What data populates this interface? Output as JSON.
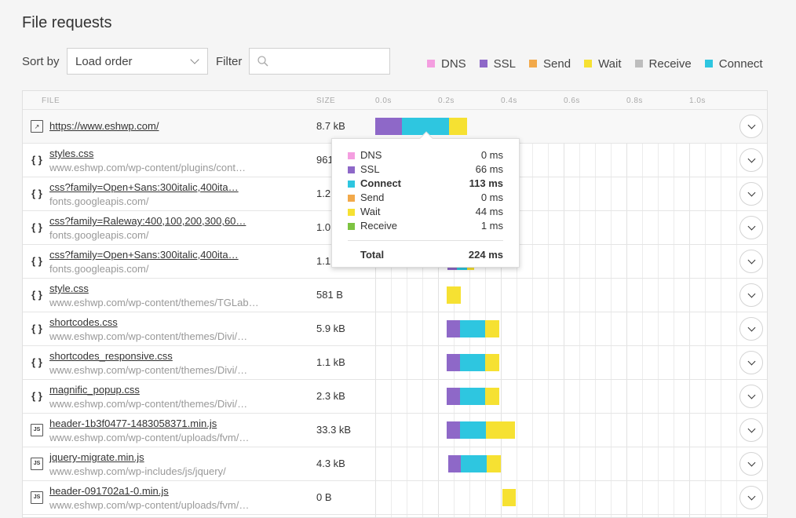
{
  "title": "File requests",
  "sort": {
    "label": "Sort by",
    "value": "Load order"
  },
  "filter": {
    "label": "Filter",
    "placeholder": ""
  },
  "legend": [
    {
      "name": "DNS",
      "color": "#f49ee0"
    },
    {
      "name": "SSL",
      "color": "#8e68c8"
    },
    {
      "name": "Send",
      "color": "#f2a94a"
    },
    {
      "name": "Wait",
      "color": "#f6e132"
    },
    {
      "name": "Receive",
      "color": "#bdbdbd"
    },
    {
      "name": "Connect",
      "color": "#2ec6e0"
    }
  ],
  "columns": {
    "file": "FILE",
    "size": "SIZE"
  },
  "timeline": {
    "ticks": [
      "0.0s",
      "0.2s",
      "0.4s",
      "0.6s",
      "0.8s",
      "1.0s"
    ]
  },
  "rows": [
    {
      "icon": "doc",
      "name": "https://www.eshwp.com/",
      "host": "",
      "size": "8.7 kB",
      "bars": [
        {
          "type": "ssl",
          "start": 0.0,
          "end": 0.086
        },
        {
          "type": "connect",
          "start": 0.086,
          "end": 0.235
        },
        {
          "type": "wait",
          "start": 0.235,
          "end": 0.293
        }
      ]
    },
    {
      "icon": "css",
      "name": "styles.css",
      "host": "www.eshwp.com/wp-content/plugins/cont…",
      "size": "961",
      "bars": []
    },
    {
      "icon": "css",
      "name": "css?family=Open+Sans:300italic,400ita…",
      "host": "fonts.googleapis.com/",
      "size": "1.2",
      "bars": []
    },
    {
      "icon": "css",
      "name": "css?family=Raleway:400,100,200,300,60…",
      "host": "fonts.googleapis.com/",
      "size": "1.0",
      "bars": []
    },
    {
      "icon": "css",
      "name": "css?family=Open+Sans:300italic,400ita…",
      "host": "fonts.googleapis.com/",
      "size": "1.1",
      "bars": [
        {
          "type": "ssl",
          "start": 0.23,
          "end": 0.26
        },
        {
          "type": "connect",
          "start": 0.26,
          "end": 0.293
        },
        {
          "type": "wait",
          "start": 0.293,
          "end": 0.315
        }
      ]
    },
    {
      "icon": "css",
      "name": "style.css",
      "host": "www.eshwp.com/wp-content/themes/TGLab…",
      "size": "581 B",
      "bars": [
        {
          "type": "wait",
          "start": 0.228,
          "end": 0.272
        }
      ]
    },
    {
      "icon": "css",
      "name": "shortcodes.css",
      "host": "www.eshwp.com/wp-content/themes/Divi/…",
      "size": "5.9 kB",
      "bars": [
        {
          "type": "ssl",
          "start": 0.228,
          "end": 0.27
        },
        {
          "type": "connect",
          "start": 0.27,
          "end": 0.35
        },
        {
          "type": "wait",
          "start": 0.35,
          "end": 0.395
        }
      ]
    },
    {
      "icon": "css",
      "name": "shortcodes_responsive.css",
      "host": "www.eshwp.com/wp-content/themes/Divi/…",
      "size": "1.1 kB",
      "bars": [
        {
          "type": "ssl",
          "start": 0.228,
          "end": 0.27
        },
        {
          "type": "connect",
          "start": 0.27,
          "end": 0.35
        },
        {
          "type": "wait",
          "start": 0.35,
          "end": 0.395
        }
      ]
    },
    {
      "icon": "css",
      "name": "magnific_popup.css",
      "host": "www.eshwp.com/wp-content/themes/Divi/…",
      "size": "2.3 kB",
      "bars": [
        {
          "type": "ssl",
          "start": 0.228,
          "end": 0.27
        },
        {
          "type": "connect",
          "start": 0.27,
          "end": 0.35
        },
        {
          "type": "wait",
          "start": 0.35,
          "end": 0.395
        }
      ]
    },
    {
      "icon": "js",
      "name": "header-1b3f0477-1483058371.min.js",
      "host": "www.eshwp.com/wp-content/uploads/fvm/…",
      "size": "33.3 kB",
      "bars": [
        {
          "type": "ssl",
          "start": 0.228,
          "end": 0.27
        },
        {
          "type": "connect",
          "start": 0.27,
          "end": 0.352
        },
        {
          "type": "wait",
          "start": 0.352,
          "end": 0.445
        }
      ]
    },
    {
      "icon": "js",
      "name": "jquery-migrate.min.js",
      "host": "www.eshwp.com/wp-includes/js/jquery/",
      "size": "4.3 kB",
      "bars": [
        {
          "type": "ssl",
          "start": 0.232,
          "end": 0.272
        },
        {
          "type": "connect",
          "start": 0.272,
          "end": 0.355
        },
        {
          "type": "wait",
          "start": 0.355,
          "end": 0.4
        }
      ]
    },
    {
      "icon": "js",
      "name": "header-091702a1-0.min.js",
      "host": "www.eshwp.com/wp-content/uploads/fvm/…",
      "size": "0 B",
      "bars": [
        {
          "type": "wait",
          "start": 0.405,
          "end": 0.448
        }
      ]
    }
  ],
  "tooltip": {
    "items": [
      {
        "name": "DNS",
        "value": "0 ms",
        "color": "#f49ee0"
      },
      {
        "name": "SSL",
        "value": "66 ms",
        "color": "#8e68c8"
      },
      {
        "name": "Connect",
        "value": "113 ms",
        "color": "#2ec6e0"
      },
      {
        "name": "Send",
        "value": "0 ms",
        "color": "#f2a94a"
      },
      {
        "name": "Wait",
        "value": "44 ms",
        "color": "#f6e132"
      },
      {
        "name": "Receive",
        "value": "1 ms",
        "color": "#7dc341"
      }
    ],
    "total_label": "Total",
    "total_value": "224 ms"
  }
}
